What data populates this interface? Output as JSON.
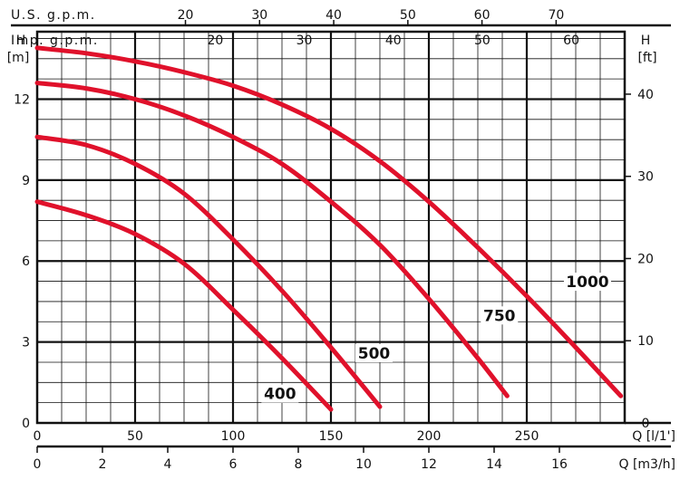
{
  "chart_data": {
    "type": "line",
    "title": "",
    "grid": true,
    "x_axis_bottom": {
      "label": "Q [l/1']",
      "range": [
        0,
        300
      ],
      "ticks": [
        "0",
        "50",
        "100",
        "150",
        "200",
        "250"
      ]
    },
    "x_axis_bottom2": {
      "label": "Q [m3/h]",
      "range": [
        0,
        18
      ],
      "ticks": [
        "0",
        "2",
        "4",
        "6",
        "8",
        "10",
        "12",
        "14",
        "16"
      ]
    },
    "x_axis_top": {
      "label": "U.S. g.p.m.",
      "range": [
        0,
        79.25
      ],
      "ticks": [
        "20",
        "30",
        "40",
        "50",
        "60",
        "70"
      ]
    },
    "x_axis_top2": {
      "label": "Imp. g.p.m.",
      "range": [
        0,
        66
      ],
      "ticks": [
        "20",
        "30",
        "40",
        "50",
        "60"
      ]
    },
    "y_axis_left": {
      "label": "H",
      "unit": "[m]",
      "range": [
        0,
        14.5
      ],
      "ticks": [
        "0",
        "3",
        "6",
        "9",
        "12"
      ]
    },
    "y_axis_right": {
      "label": "H",
      "unit": "[ft]",
      "range": [
        0,
        47.6
      ],
      "ticks": [
        "0",
        "10",
        "20",
        "30",
        "40"
      ]
    },
    "series": [
      {
        "name": "400",
        "color": "#e0112b",
        "x": [
          0,
          25,
          50,
          75,
          100,
          125,
          150
        ],
        "y": [
          8.2,
          7.7,
          7.0,
          5.9,
          4.2,
          2.4,
          0.5
        ]
      },
      {
        "name": "500",
        "color": "#e0112b",
        "x": [
          0,
          25,
          50,
          75,
          100,
          125,
          150,
          175
        ],
        "y": [
          10.6,
          10.3,
          9.6,
          8.5,
          6.8,
          4.9,
          2.8,
          0.6
        ]
      },
      {
        "name": "750",
        "color": "#e0112b",
        "x": [
          0,
          25,
          50,
          75,
          100,
          125,
          150,
          175,
          200,
          225,
          240
        ],
        "y": [
          12.6,
          12.4,
          12.0,
          11.4,
          10.6,
          9.6,
          8.2,
          6.6,
          4.6,
          2.4,
          1.0
        ]
      },
      {
        "name": "1000",
        "color": "#e0112b",
        "x": [
          0,
          25,
          50,
          75,
          100,
          125,
          150,
          175,
          200,
          225,
          250,
          275,
          298
        ],
        "y": [
          13.9,
          13.7,
          13.4,
          13.0,
          12.5,
          11.8,
          10.9,
          9.7,
          8.2,
          6.5,
          4.7,
          2.8,
          1.0
        ]
      }
    ],
    "label_points": [
      {
        "text": "400",
        "x": 124,
        "y": 0.95
      },
      {
        "text": "500",
        "x": 172,
        "y": 2.45
      },
      {
        "text": "750",
        "x": 236,
        "y": 3.85
      },
      {
        "text": "1000",
        "x": 281,
        "y": 5.1
      }
    ]
  }
}
